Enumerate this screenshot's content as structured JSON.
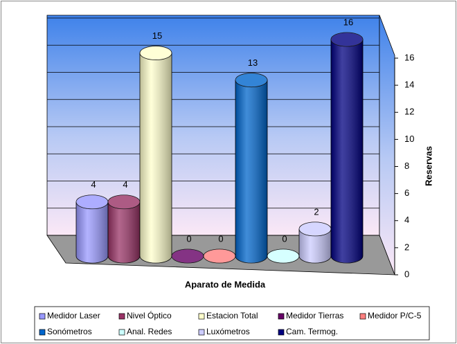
{
  "chart_data": {
    "type": "bar3d-cylinder",
    "xlabel": "Aparato de Medida",
    "ylabel": "Reservas",
    "ylim": [
      0,
      16
    ],
    "yticks": [
      0,
      2,
      4,
      6,
      8,
      10,
      12,
      14,
      16
    ],
    "grid": true,
    "legend": "bottom",
    "series": [
      {
        "name": "Medidor Laser",
        "color": "#9999ff",
        "values": [
          4
        ]
      },
      {
        "name": "Nivel Óptico",
        "color": "#993366",
        "values": [
          4
        ]
      },
      {
        "name": "Estacion Total",
        "color": "#ffffcc",
        "values": [
          15
        ]
      },
      {
        "name": "Medidor Tierras",
        "color": "#660066",
        "values": [
          0
        ]
      },
      {
        "name": "Medidor P/C-5",
        "color": "#ff8080",
        "values": [
          0
        ]
      },
      {
        "name": "Sonómetros",
        "color": "#0066cc",
        "values": [
          13
        ]
      },
      {
        "name": "Anal. Redes",
        "color": "#ccffff",
        "values": [
          0
        ]
      },
      {
        "name": "Luxómetros",
        "color": "#ccccff",
        "values": [
          2
        ]
      },
      {
        "name": "Cam. Termog.",
        "color": "#000080",
        "values": [
          16
        ]
      }
    ]
  }
}
